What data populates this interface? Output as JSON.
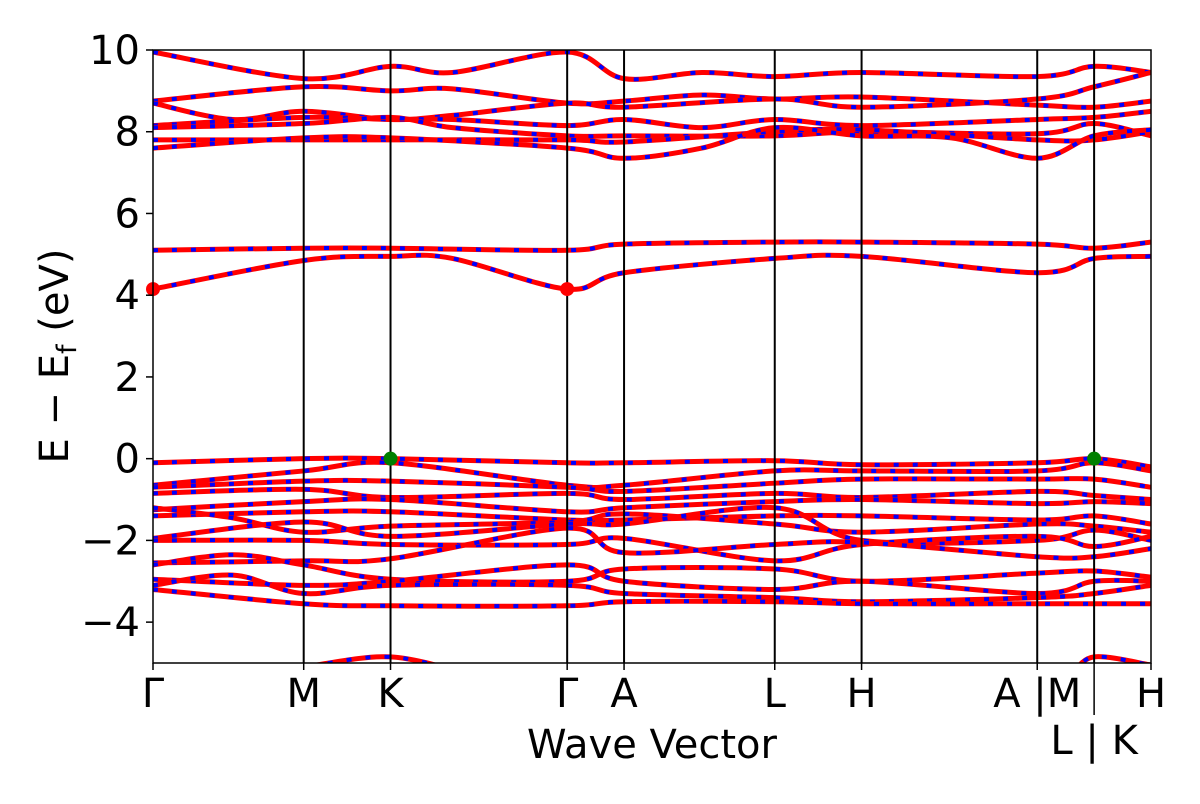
{
  "chart_data": {
    "type": "line",
    "title": "",
    "xlabel": "Wave Vector",
    "ylabel_main": "E − E",
    "ylabel_sub": "f",
    "ylabel_unit": " (eV)",
    "ylim": [
      -5,
      10
    ],
    "yticks": [
      -4,
      -2,
      0,
      2,
      4,
      6,
      8,
      10
    ],
    "ytick_labels": [
      "−4",
      "−2",
      "0",
      "2",
      "4",
      "6",
      "8",
      "10"
    ],
    "kpoints": [
      0,
      0.151,
      0.238,
      0.415,
      0.472,
      0.623,
      0.71,
      0.886,
      0.943,
      1.0
    ],
    "kpoint_labels": [
      "Γ",
      "M",
      "K",
      "Γ",
      "A",
      "L",
      "H",
      "A |M",
      "L | K",
      "H"
    ],
    "colors": {
      "spin_up": "#ff0000",
      "spin_down": "#0000ff",
      "cbm": "#ff0000",
      "vbm": "#008000"
    },
    "bands": [
      [
        [
          0,
          9.95
        ],
        [
          0.151,
          9.3
        ],
        [
          0.238,
          9.6
        ],
        [
          0.3,
          9.45
        ],
        [
          0.415,
          9.95
        ],
        [
          0.472,
          9.3
        ],
        [
          0.55,
          9.45
        ],
        [
          0.623,
          9.35
        ],
        [
          0.71,
          9.45
        ],
        [
          0.886,
          9.35
        ],
        [
          0.943,
          9.6
        ],
        [
          1,
          9.45
        ]
      ],
      [
        [
          0,
          8.75
        ],
        [
          0.151,
          9.1
        ],
        [
          0.238,
          9.0
        ],
        [
          0.3,
          9.05
        ],
        [
          0.415,
          8.7
        ],
        [
          0.472,
          8.75
        ],
        [
          0.55,
          8.9
        ],
        [
          0.623,
          8.8
        ],
        [
          0.71,
          8.85
        ],
        [
          0.886,
          8.65
        ],
        [
          0.943,
          8.6
        ],
        [
          1,
          8.75
        ]
      ],
      [
        [
          0,
          8.7
        ],
        [
          0.08,
          8.3
        ],
        [
          0.151,
          8.5
        ],
        [
          0.238,
          8.3
        ],
        [
          0.3,
          8.4
        ],
        [
          0.415,
          8.7
        ],
        [
          0.472,
          8.6
        ],
        [
          0.623,
          8.8
        ],
        [
          0.71,
          8.6
        ],
        [
          0.886,
          8.8
        ],
        [
          0.943,
          9.1
        ],
        [
          1,
          9.45
        ]
      ],
      [
        [
          0,
          8.15
        ],
        [
          0.151,
          8.35
        ],
        [
          0.238,
          8.3
        ],
        [
          0.3,
          8.3
        ],
        [
          0.415,
          8.15
        ],
        [
          0.472,
          8.3
        ],
        [
          0.55,
          8.1
        ],
        [
          0.623,
          8.3
        ],
        [
          0.71,
          8.15
        ],
        [
          0.886,
          8.3
        ],
        [
          0.943,
          8.35
        ],
        [
          1,
          8.5
        ]
      ],
      [
        [
          0,
          8.1
        ],
        [
          0.151,
          8.2
        ],
        [
          0.238,
          8.35
        ],
        [
          0.3,
          8.1
        ],
        [
          0.415,
          7.9
        ],
        [
          0.472,
          7.9
        ],
        [
          0.623,
          7.9
        ],
        [
          0.71,
          8.0
        ],
        [
          0.886,
          7.95
        ],
        [
          0.943,
          8.2
        ],
        [
          1,
          7.9
        ]
      ],
      [
        [
          0,
          7.8
        ],
        [
          0.151,
          7.8
        ],
        [
          0.238,
          7.8
        ],
        [
          0.415,
          7.8
        ],
        [
          0.472,
          7.75
        ],
        [
          0.623,
          8.0
        ],
        [
          0.71,
          8.05
        ],
        [
          0.886,
          7.8
        ],
        [
          0.943,
          7.8
        ],
        [
          1,
          8.0
        ]
      ],
      [
        [
          0,
          7.6
        ],
        [
          0.151,
          7.85
        ],
        [
          0.238,
          7.85
        ],
        [
          0.415,
          7.6
        ],
        [
          0.472,
          7.35
        ],
        [
          0.55,
          7.6
        ],
        [
          0.623,
          8.1
        ],
        [
          0.71,
          7.9
        ],
        [
          0.8,
          7.85
        ],
        [
          0.886,
          7.35
        ],
        [
          0.943,
          7.9
        ],
        [
          1,
          8.05
        ]
      ],
      [
        [
          0,
          5.1
        ],
        [
          0.151,
          5.15
        ],
        [
          0.238,
          5.15
        ],
        [
          0.415,
          5.1
        ],
        [
          0.472,
          5.25
        ],
        [
          0.623,
          5.3
        ],
        [
          0.71,
          5.3
        ],
        [
          0.886,
          5.25
        ],
        [
          0.943,
          5.15
        ],
        [
          1,
          5.3
        ]
      ],
      [
        [
          0,
          4.15
        ],
        [
          0.151,
          4.85
        ],
        [
          0.238,
          4.95
        ],
        [
          0.3,
          4.9
        ],
        [
          0.415,
          4.15
        ],
        [
          0.472,
          4.55
        ],
        [
          0.623,
          4.9
        ],
        [
          0.71,
          4.95
        ],
        [
          0.886,
          4.55
        ],
        [
          0.943,
          4.9
        ],
        [
          1,
          4.95
        ]
      ],
      [
        [
          0,
          -0.1
        ],
        [
          0.151,
          0
        ],
        [
          0.238,
          0
        ],
        [
          0.415,
          -0.1
        ],
        [
          0.472,
          -0.1
        ],
        [
          0.623,
          -0.05
        ],
        [
          0.71,
          -0.15
        ],
        [
          0.886,
          -0.1
        ],
        [
          0.943,
          0
        ],
        [
          1,
          -0.2
        ]
      ],
      [
        [
          0,
          -0.65
        ],
        [
          0.151,
          -0.3
        ],
        [
          0.238,
          -0.1
        ],
        [
          0.415,
          -0.65
        ],
        [
          0.472,
          -0.65
        ],
        [
          0.623,
          -0.3
        ],
        [
          0.71,
          -0.3
        ],
        [
          0.886,
          -0.3
        ],
        [
          0.943,
          -0.1
        ],
        [
          1,
          -0.3
        ]
      ],
      [
        [
          0,
          -0.7
        ],
        [
          0.151,
          -0.55
        ],
        [
          0.238,
          -0.55
        ],
        [
          0.415,
          -0.7
        ],
        [
          0.472,
          -0.8
        ],
        [
          0.623,
          -0.6
        ],
        [
          0.71,
          -0.5
        ],
        [
          0.886,
          -0.5
        ],
        [
          0.943,
          -0.5
        ],
        [
          1,
          -0.7
        ]
      ],
      [
        [
          0,
          -0.85
        ],
        [
          0.151,
          -0.75
        ],
        [
          0.238,
          -0.95
        ],
        [
          0.415,
          -0.85
        ],
        [
          0.472,
          -1.0
        ],
        [
          0.623,
          -0.85
        ],
        [
          0.71,
          -0.95
        ],
        [
          0.886,
          -0.8
        ],
        [
          0.943,
          -0.9
        ],
        [
          1,
          -1.0
        ]
      ],
      [
        [
          0,
          -1.25
        ],
        [
          0.151,
          -1.05
        ],
        [
          0.238,
          -1.0
        ],
        [
          0.415,
          -1.3
        ],
        [
          0.472,
          -1.2
        ],
        [
          0.623,
          -1.05
        ],
        [
          0.71,
          -1.0
        ],
        [
          0.886,
          -1.1
        ],
        [
          0.943,
          -1.05
        ],
        [
          1,
          -1.1
        ]
      ],
      [
        [
          0,
          -1.4
        ],
        [
          0.151,
          -1.3
        ],
        [
          0.238,
          -1.3
        ],
        [
          0.415,
          -1.5
        ],
        [
          0.472,
          -1.5
        ],
        [
          0.623,
          -1.4
        ],
        [
          0.71,
          -1.4
        ],
        [
          0.886,
          -1.5
        ],
        [
          0.943,
          -1.4
        ],
        [
          1,
          -1.6
        ]
      ],
      [
        [
          0,
          -1.2
        ],
        [
          0.08,
          -1.45
        ],
        [
          0.151,
          -1.8
        ],
        [
          0.238,
          -1.65
        ],
        [
          0.415,
          -1.55
        ],
        [
          0.472,
          -1.35
        ],
        [
          0.623,
          -1.6
        ],
        [
          0.71,
          -1.8
        ],
        [
          0.886,
          -1.6
        ],
        [
          0.943,
          -1.65
        ],
        [
          1,
          -1.8
        ]
      ],
      [
        [
          0,
          -1.95
        ],
        [
          0.151,
          -1.55
        ],
        [
          0.238,
          -1.9
        ],
        [
          0.415,
          -1.6
        ],
        [
          0.472,
          -1.6
        ],
        [
          0.623,
          -1.2
        ],
        [
          0.71,
          -2.0
        ],
        [
          0.886,
          -2.0
        ],
        [
          0.943,
          -1.75
        ],
        [
          1,
          -2.0
        ]
      ],
      [
        [
          0,
          -2.0
        ],
        [
          0.151,
          -2.0
        ],
        [
          0.238,
          -2.1
        ],
        [
          0.415,
          -2.1
        ],
        [
          0.472,
          -1.95
        ],
        [
          0.623,
          -2.5
        ],
        [
          0.71,
          -2.1
        ],
        [
          0.886,
          -1.9
        ],
        [
          0.943,
          -2.15
        ],
        [
          1,
          -1.9
        ]
      ],
      [
        [
          0,
          -2.55
        ],
        [
          0.151,
          -2.5
        ],
        [
          0.238,
          -2.45
        ],
        [
          0.415,
          -1.7
        ],
        [
          0.472,
          -2.3
        ],
        [
          0.623,
          -2.1
        ],
        [
          0.71,
          -2.05
        ],
        [
          0.886,
          -2.4
        ],
        [
          0.943,
          -2.4
        ],
        [
          1,
          -2.2
        ]
      ],
      [
        [
          0,
          -2.6
        ],
        [
          0.08,
          -2.35
        ],
        [
          0.151,
          -2.6
        ],
        [
          0.238,
          -2.95
        ],
        [
          0.415,
          -3.0
        ],
        [
          0.472,
          -2.7
        ],
        [
          0.623,
          -2.7
        ],
        [
          0.71,
          -3.0
        ],
        [
          0.886,
          -2.8
        ],
        [
          0.943,
          -2.75
        ],
        [
          1,
          -2.9
        ]
      ],
      [
        [
          0,
          -2.95
        ],
        [
          0.151,
          -3.1
        ],
        [
          0.238,
          -3.0
        ],
        [
          0.415,
          -2.6
        ],
        [
          0.472,
          -3.0
        ],
        [
          0.623,
          -3.2
        ],
        [
          0.71,
          -3.0
        ],
        [
          0.886,
          -3.3
        ],
        [
          0.943,
          -3.0
        ],
        [
          1,
          -3.0
        ]
      ],
      [
        [
          0,
          -3.1
        ],
        [
          0.08,
          -2.85
        ],
        [
          0.151,
          -3.3
        ],
        [
          0.238,
          -3.1
        ],
        [
          0.415,
          -3.1
        ],
        [
          0.472,
          -3.3
        ],
        [
          0.623,
          -3.4
        ],
        [
          0.71,
          -3.5
        ],
        [
          0.886,
          -3.4
        ],
        [
          0.943,
          -3.3
        ],
        [
          1,
          -3.1
        ]
      ],
      [
        [
          0,
          -3.2
        ],
        [
          0.151,
          -3.55
        ],
        [
          0.238,
          -3.6
        ],
        [
          0.415,
          -3.6
        ],
        [
          0.472,
          -3.5
        ],
        [
          0.623,
          -3.5
        ],
        [
          0.71,
          -3.55
        ],
        [
          0.886,
          -3.55
        ],
        [
          0.943,
          -3.55
        ],
        [
          1,
          -3.55
        ]
      ],
      [
        [
          0.1,
          -5.3
        ],
        [
          0.151,
          -5.1
        ],
        [
          0.238,
          -4.85
        ],
        [
          0.32,
          -5.3
        ]
      ],
      [
        [
          0.92,
          -5.3
        ],
        [
          0.943,
          -4.85
        ],
        [
          1,
          -5.05
        ]
      ]
    ],
    "cbm_points": [
      [
        0,
        4.15
      ],
      [
        0.415,
        4.15
      ]
    ],
    "vbm_points": [
      [
        0.238,
        0
      ],
      [
        0.943,
        0
      ]
    ]
  }
}
